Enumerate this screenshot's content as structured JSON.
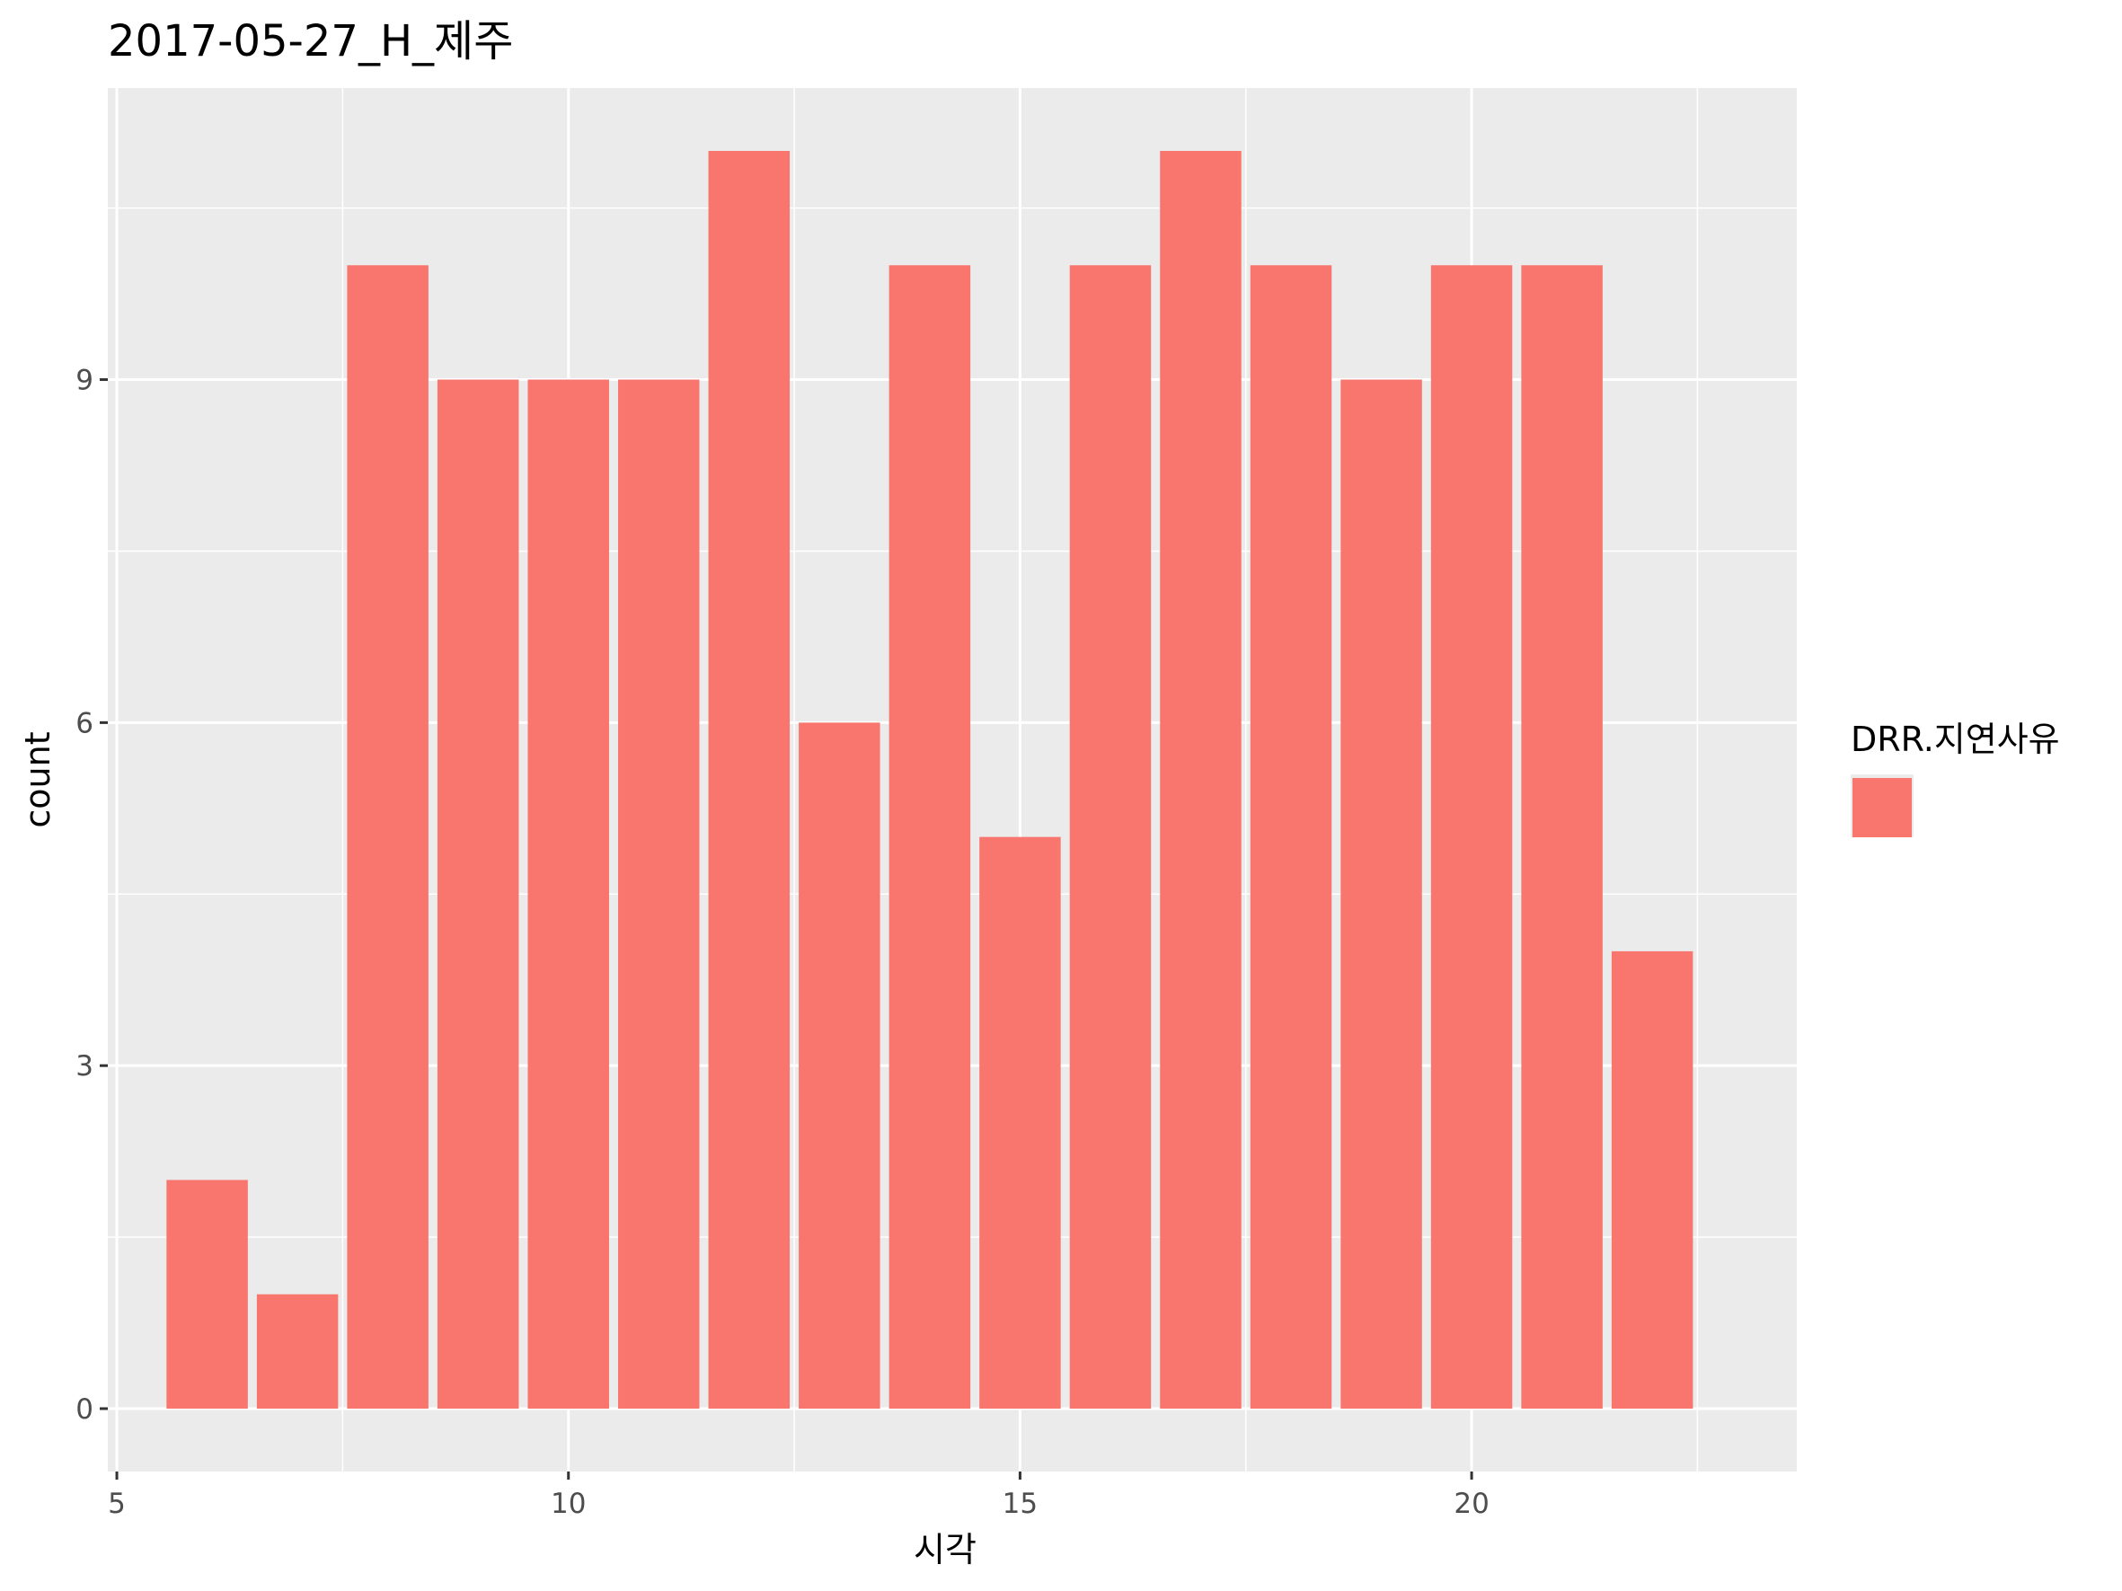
{
  "chart_data": {
    "type": "bar",
    "title": "2017-05-27_H_제주",
    "xlabel": "시각",
    "ylabel": "count",
    "x": [
      6,
      7,
      8,
      9,
      10,
      11,
      12,
      13,
      14,
      15,
      16,
      17,
      18,
      19,
      20,
      21,
      22
    ],
    "values": [
      2,
      1,
      10,
      9,
      9,
      9,
      11,
      6,
      10,
      5,
      10,
      11,
      10,
      9,
      10,
      10,
      4
    ],
    "xlim": [
      4.9,
      23.6
    ],
    "ylim": [
      -0.55,
      11.55
    ],
    "x_ticks": [
      5,
      10,
      15,
      20
    ],
    "y_ticks": [
      0,
      3,
      6,
      9
    ],
    "grid": true,
    "legend": {
      "title": "DRR.지연사유",
      "placement": "right",
      "entries": [
        {
          "label": "",
          "color": "#f8766d"
        }
      ]
    },
    "colors": {
      "bar": "#f8766d",
      "panel_background": "#ebebeb",
      "grid": "#ffffff"
    }
  }
}
